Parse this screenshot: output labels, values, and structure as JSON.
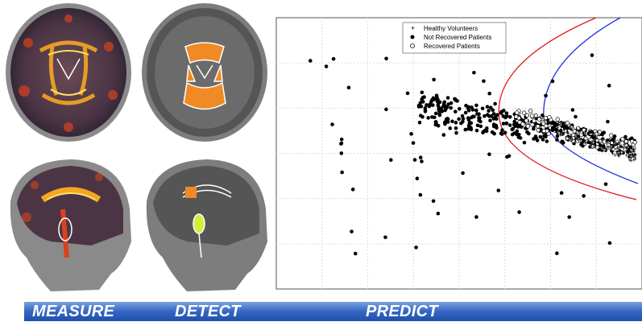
{
  "banner": {
    "steps": [
      "MEASURE",
      "DETECT",
      "PREDICT"
    ],
    "color": "#2a5bb8"
  },
  "legend": {
    "healthy": "Healthy Volunteers",
    "not_recovered": "Not Recovered Patients",
    "recovered": "Recovered Patients"
  },
  "images": {
    "axial_heatmap": "brain-axial-fa-heatmap",
    "axial_segmented": "brain-axial-segmented",
    "sagittal_heatmap": "brain-sagittal-fa-heatmap",
    "sagittal_segmented": "brain-sagittal-segmented"
  },
  "chart_data": {
    "type": "scatter",
    "grid": true,
    "legend_position": "top-center",
    "series": [
      {
        "name": "Healthy Volunteers",
        "marker": "plus",
        "color": "#000000"
      },
      {
        "name": "Not Recovered Patients",
        "marker": "filled-circle",
        "color": "#000000"
      },
      {
        "name": "Recovered Patients",
        "marker": "open-circle",
        "color": "#000000"
      }
    ],
    "boundaries": [
      {
        "color": "#e01b1b"
      },
      {
        "color": "#1b2de0"
      }
    ]
  }
}
